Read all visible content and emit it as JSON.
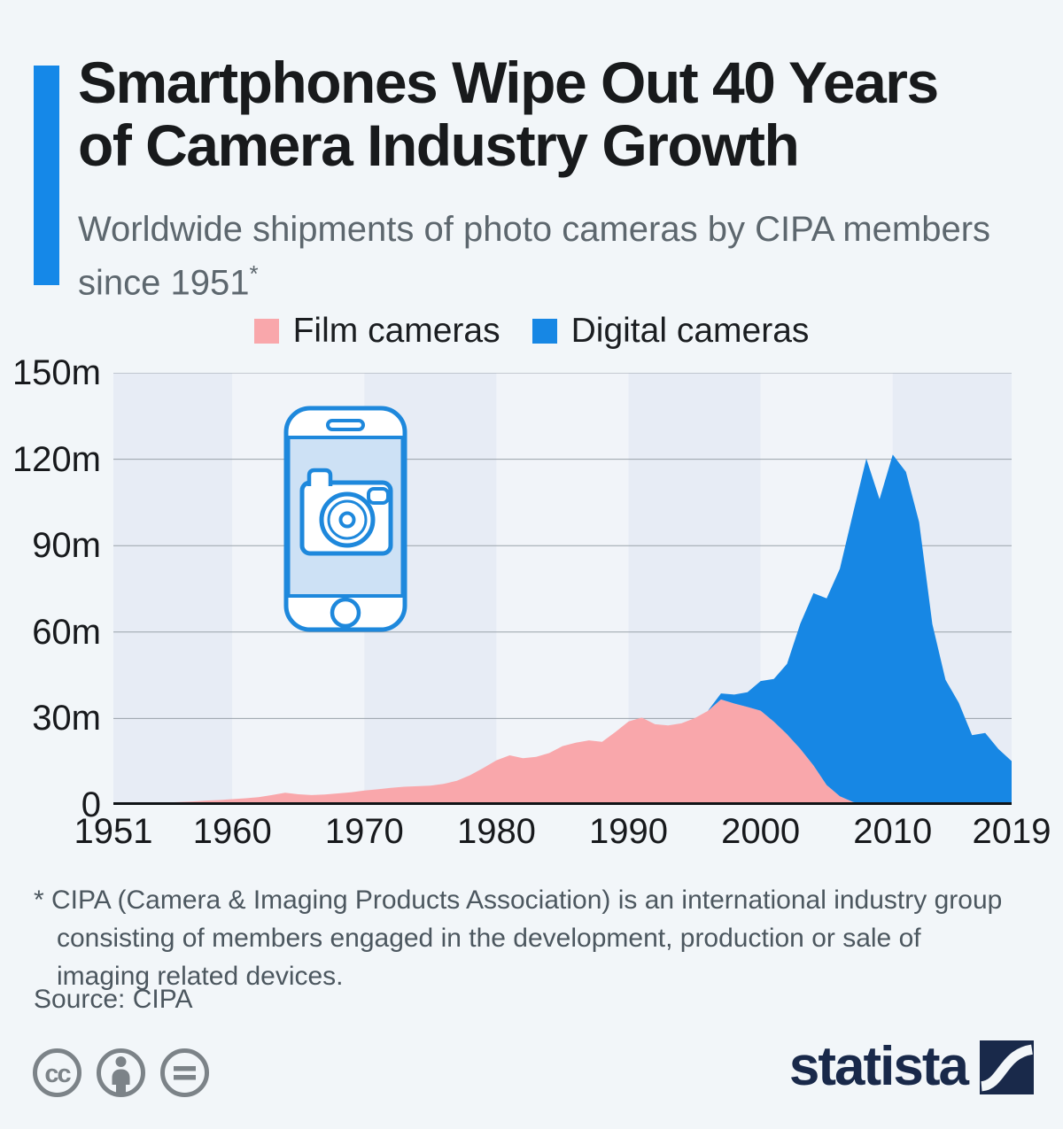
{
  "page": {
    "background": "#f2f6f9"
  },
  "header": {
    "accent_color": "#1588e8",
    "title": "Smartphones Wipe Out 40 Years\nof Camera Industry Growth",
    "subtitle": "Worldwide shipments of photo cameras by CIPA members\nsince 1951",
    "subtitle_marker": "*"
  },
  "chart_data": {
    "type": "area",
    "stacked": true,
    "title": "Worldwide shipments of photo cameras by CIPA members since 1951",
    "unit": "million units",
    "x": [
      1951,
      1952,
      1953,
      1954,
      1955,
      1956,
      1957,
      1958,
      1959,
      1960,
      1961,
      1962,
      1963,
      1964,
      1965,
      1966,
      1967,
      1968,
      1969,
      1970,
      1971,
      1972,
      1973,
      1974,
      1975,
      1976,
      1977,
      1978,
      1979,
      1980,
      1981,
      1982,
      1983,
      1984,
      1985,
      1986,
      1987,
      1988,
      1989,
      1990,
      1991,
      1992,
      1993,
      1994,
      1995,
      1996,
      1997,
      1998,
      1999,
      2000,
      2001,
      2002,
      2003,
      2004,
      2005,
      2006,
      2007,
      2008,
      2009,
      2010,
      2011,
      2012,
      2013,
      2014,
      2015,
      2016,
      2017,
      2018,
      2019
    ],
    "series": [
      {
        "name": "Film cameras",
        "color": "#f9a7ab",
        "values": [
          0.3,
          0.4,
          0.5,
          0.6,
          0.8,
          1.0,
          1.2,
          1.5,
          1.7,
          2.0,
          2.3,
          2.7,
          3.4,
          4.2,
          3.7,
          3.4,
          3.6,
          4.0,
          4.4,
          5.0,
          5.4,
          5.9,
          6.3,
          6.5,
          6.7,
          7.3,
          8.4,
          10.3,
          12.8,
          15.5,
          17.2,
          16.2,
          16.7,
          18.0,
          20.4,
          21.6,
          22.4,
          21.9,
          25.3,
          29.0,
          30.3,
          28.0,
          27.6,
          28.3,
          30.1,
          32.6,
          36.6,
          35.2,
          34.0,
          32.7,
          28.9,
          24.5,
          19.5,
          13.7,
          6.9,
          3.0,
          1.0,
          0.4,
          0.2,
          0.1,
          0.1,
          0,
          0,
          0,
          0,
          0,
          0,
          0,
          0
        ]
      },
      {
        "name": "Digital cameras",
        "color": "#1787e4",
        "values": [
          0,
          0,
          0,
          0,
          0,
          0,
          0,
          0,
          0,
          0,
          0,
          0,
          0,
          0,
          0,
          0,
          0,
          0,
          0,
          0,
          0,
          0,
          0,
          0,
          0,
          0,
          0,
          0,
          0,
          0,
          0,
          0,
          0,
          0,
          0,
          0,
          0,
          0,
          0,
          0,
          0,
          0,
          0,
          0,
          0,
          0,
          2.1,
          3.1,
          5.1,
          10.3,
          14.8,
          24.5,
          43.4,
          59.8,
          64.8,
          79.0,
          100.4,
          119.8,
          105.9,
          121.5,
          115.5,
          98.1,
          62.8,
          43.4,
          35.4,
          24.2,
          25.0,
          19.4,
          15.2
        ]
      }
    ],
    "ylim": [
      0,
      150
    ],
    "y_ticks": [
      {
        "value": 0,
        "label": "0"
      },
      {
        "value": 30,
        "label": "30m"
      },
      {
        "value": 60,
        "label": "60m"
      },
      {
        "value": 90,
        "label": "90m"
      },
      {
        "value": 120,
        "label": "120m"
      },
      {
        "value": 150,
        "label": "150m"
      }
    ],
    "x_ticks": [
      1951,
      1960,
      1970,
      1980,
      1990,
      2000,
      2010,
      2019
    ],
    "grid": "horizontal",
    "legend_position": "top"
  },
  "footer": {
    "footnote": "* CIPA (Camera & Imaging Products Association) is an international industry group\nconsisting of members engaged in the development, production or sale of\nimaging related devices.",
    "source": "Source: CIPA",
    "license_icons": [
      "cc",
      "attribution",
      "no-derivatives"
    ],
    "brand": {
      "name": "statista",
      "color": "#19294a"
    }
  }
}
